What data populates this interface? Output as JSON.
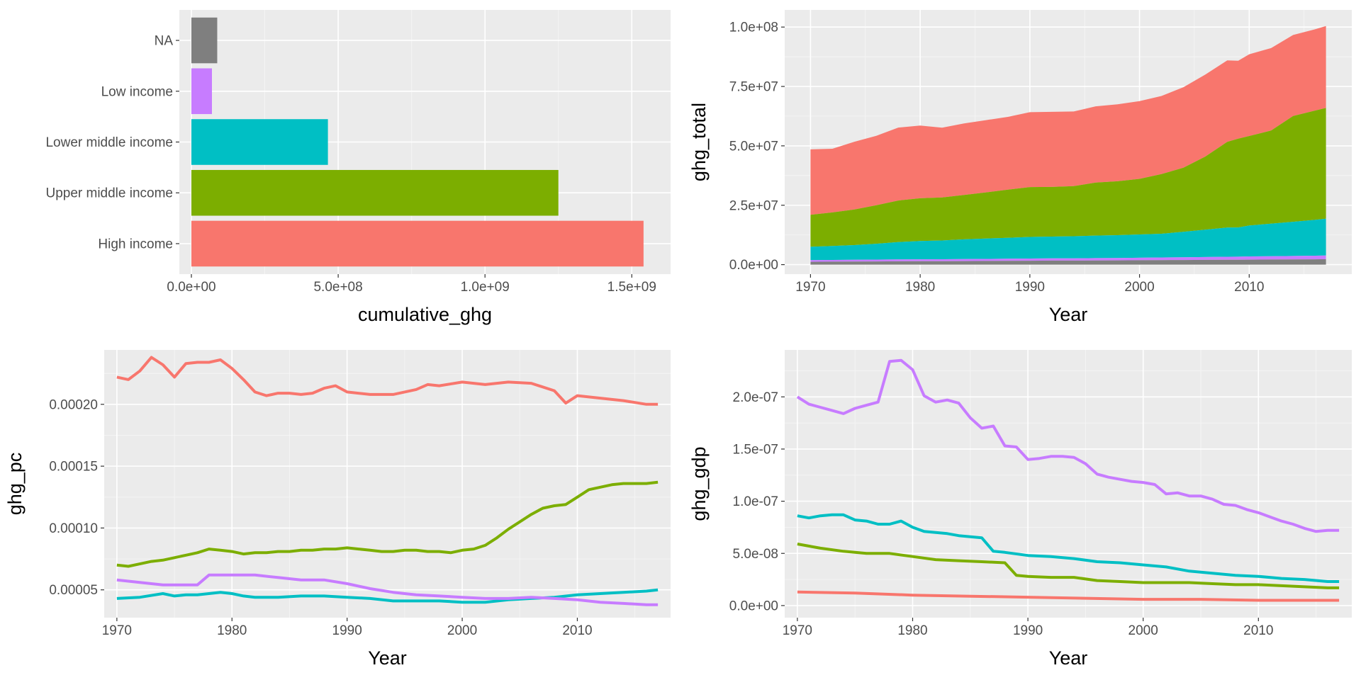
{
  "colors": {
    "High income": "#F8766D",
    "Upper middle income": "#7CAE00",
    "Lower middle income": "#00BFC4",
    "Low income": "#C77CFF",
    "NA": "#7F7F7F"
  },
  "chart_data": [
    {
      "type": "bar",
      "orientation": "horizontal",
      "xlabel": "cumulative_ghg",
      "ylabel": "",
      "xlim": [
        0,
        1550000000
      ],
      "x_ticks": [
        0,
        500000000,
        1000000000,
        1500000000
      ],
      "x_tick_labels": [
        "0.0e+00",
        "5.0e+08",
        "1.0e+09",
        "1.5e+09"
      ],
      "categories": [
        "High income",
        "Upper middle income",
        "Lower middle income",
        "Low income",
        "NA"
      ],
      "values": [
        1540000000,
        1250000000,
        465000000,
        70000000,
        88000000
      ],
      "grid": true
    },
    {
      "type": "area",
      "stacked": true,
      "xlabel": "Year",
      "ylabel": "ghg_total",
      "x": [
        1970,
        1972,
        1974,
        1976,
        1978,
        1980,
        1982,
        1984,
        1986,
        1988,
        1990,
        1992,
        1994,
        1996,
        1998,
        2000,
        2002,
        2004,
        2006,
        2008,
        2009,
        2010,
        2012,
        2014,
        2016,
        2017
      ],
      "x_ticks": [
        1970,
        1980,
        1990,
        2000,
        2010
      ],
      "x_tick_labels": [
        "1970",
        "1980",
        "1990",
        "2000",
        "2010"
      ],
      "ylim": [
        0,
        101000000
      ],
      "y_ticks": [
        0,
        25000000,
        50000000,
        75000000,
        100000000
      ],
      "y_tick_labels": [
        "0.0e+00",
        "2.5e+07",
        "5.0e+07",
        "7.5e+07",
        "1.0e+08"
      ],
      "stack_order_bottom_to_top": [
        "NA",
        "Low income",
        "Lower middle income",
        "Upper middle income",
        "High income"
      ],
      "series": [
        {
          "name": "NA",
          "values": [
            1200000,
            1250000,
            1300000,
            1350000,
            1400000,
            1450000,
            1450000,
            1500000,
            1550000,
            1600000,
            1650000,
            1700000,
            1700000,
            1750000,
            1800000,
            1850000,
            1900000,
            1950000,
            2000000,
            2050000,
            2050000,
            2100000,
            2150000,
            2200000,
            2250000,
            2300000
          ]
        },
        {
          "name": "Low income",
          "values": [
            700000,
            720000,
            740000,
            760000,
            780000,
            800000,
            820000,
            840000,
            860000,
            880000,
            900000,
            920000,
            950000,
            980000,
            1000000,
            1050000,
            1100000,
            1150000,
            1200000,
            1250000,
            1300000,
            1350000,
            1400000,
            1450000,
            1500000,
            1550000
          ]
        },
        {
          "name": "Lower middle income",
          "values": [
            5600000,
            5900000,
            6200000,
            6700000,
            7300000,
            7700000,
            7900000,
            8300000,
            8600000,
            8800000,
            9100000,
            9200000,
            9300000,
            9500000,
            9600000,
            9800000,
            10000000,
            10700000,
            11500000,
            12300000,
            12300000,
            13000000,
            13700000,
            14400000,
            15100000,
            15500000
          ]
        },
        {
          "name": "Upper middle income",
          "values": [
            13500000,
            14100000,
            15000000,
            16200000,
            17500000,
            18000000,
            18100000,
            18700000,
            19400000,
            20300000,
            21000000,
            20900000,
            21100000,
            22300000,
            22700000,
            23400000,
            25100000,
            27000000,
            30800000,
            36100000,
            37400000,
            37700000,
            39200000,
            44500000,
            46000000,
            46600000
          ]
        },
        {
          "name": "High income",
          "values": [
            27500000,
            26800000,
            28500000,
            29200000,
            30700000,
            30600000,
            29400000,
            30100000,
            30400000,
            30600000,
            31500000,
            31600000,
            31400000,
            32100000,
            32400000,
            32700000,
            32900000,
            33900000,
            34500000,
            34300000,
            32800000,
            34400000,
            34700000,
            34100000,
            34200000,
            34500000
          ]
        }
      ],
      "grid": true
    },
    {
      "type": "line",
      "xlabel": "Year",
      "ylabel": "ghg_pc",
      "xlim": [
        1968.9,
        2018.1
      ],
      "x_ticks": [
        1970,
        1980,
        1990,
        2000,
        2010
      ],
      "x_tick_labels": [
        "1970",
        "1980",
        "1990",
        "2000",
        "2010"
      ],
      "ylim": [
        2.75e-05,
        0.000244
      ],
      "y_ticks": [
        5e-05,
        0.0001,
        0.00015,
        0.0002
      ],
      "y_tick_labels": [
        "0.00005",
        "0.00010",
        "0.00015",
        "0.00020"
      ],
      "series": [
        {
          "name": "High income",
          "x": [
            1970,
            1971,
            1972,
            1973,
            1974,
            1975,
            1976,
            1977,
            1978,
            1979,
            1980,
            1981,
            1982,
            1983,
            1984,
            1985,
            1986,
            1987,
            1988,
            1989,
            1990,
            1992,
            1994,
            1996,
            1997,
            1998,
            2000,
            2002,
            2004,
            2006,
            2008,
            2009,
            2010,
            2012,
            2014,
            2016,
            2017
          ],
          "values": [
            0.000222,
            0.00022,
            0.000227,
            0.000238,
            0.000232,
            0.000222,
            0.000233,
            0.000234,
            0.000234,
            0.000236,
            0.000229,
            0.00022,
            0.00021,
            0.000207,
            0.000209,
            0.000209,
            0.000208,
            0.000209,
            0.000213,
            0.000215,
            0.00021,
            0.000208,
            0.000208,
            0.000212,
            0.000216,
            0.000215,
            0.000218,
            0.000216,
            0.000218,
            0.000217,
            0.000211,
            0.000201,
            0.000207,
            0.000205,
            0.000203,
            0.0002,
            0.0002
          ]
        },
        {
          "name": "Upper middle income",
          "x": [
            1970,
            1971,
            1972,
            1973,
            1974,
            1975,
            1976,
            1977,
            1978,
            1979,
            1980,
            1981,
            1982,
            1983,
            1984,
            1985,
            1986,
            1987,
            1988,
            1989,
            1990,
            1991,
            1992,
            1993,
            1994,
            1995,
            1996,
            1997,
            1998,
            1999,
            2000,
            2001,
            2002,
            2003,
            2004,
            2005,
            2006,
            2007,
            2008,
            2009,
            2010,
            2011,
            2012,
            2013,
            2014,
            2015,
            2016,
            2017
          ],
          "values": [
            7e-05,
            6.9e-05,
            7.1e-05,
            7.3e-05,
            7.4e-05,
            7.6e-05,
            7.8e-05,
            8e-05,
            8.3e-05,
            8.2e-05,
            8.1e-05,
            7.9e-05,
            8e-05,
            8e-05,
            8.1e-05,
            8.1e-05,
            8.2e-05,
            8.2e-05,
            8.3e-05,
            8.3e-05,
            8.4e-05,
            8.3e-05,
            8.2e-05,
            8.1e-05,
            8.1e-05,
            8.2e-05,
            8.2e-05,
            8.1e-05,
            8.1e-05,
            8e-05,
            8.2e-05,
            8.3e-05,
            8.6e-05,
            9.2e-05,
            9.9e-05,
            0.000105,
            0.000111,
            0.000116,
            0.000118,
            0.000119,
            0.000125,
            0.000131,
            0.000133,
            0.000135,
            0.000136,
            0.000136,
            0.000136,
            0.000137
          ]
        },
        {
          "name": "Lower middle income",
          "x": [
            1970,
            1972,
            1974,
            1975,
            1976,
            1977,
            1978,
            1979,
            1980,
            1981,
            1982,
            1984,
            1986,
            1988,
            1990,
            1992,
            1994,
            1996,
            1998,
            2000,
            2002,
            2004,
            2006,
            2008,
            2010,
            2012,
            2014,
            2016,
            2017
          ],
          "values": [
            4.3e-05,
            4.4e-05,
            4.7e-05,
            4.5e-05,
            4.6e-05,
            4.6e-05,
            4.7e-05,
            4.8e-05,
            4.7e-05,
            4.5e-05,
            4.4e-05,
            4.4e-05,
            4.5e-05,
            4.5e-05,
            4.4e-05,
            4.3e-05,
            4.1e-05,
            4.1e-05,
            4.1e-05,
            4e-05,
            4e-05,
            4.2e-05,
            4.3e-05,
            4.4e-05,
            4.6e-05,
            4.7e-05,
            4.8e-05,
            4.9e-05,
            5e-05
          ]
        },
        {
          "name": "Low income",
          "x": [
            1970,
            1972,
            1974,
            1976,
            1977,
            1978,
            1980,
            1982,
            1984,
            1986,
            1988,
            1990,
            1992,
            1994,
            1996,
            1998,
            2000,
            2002,
            2004,
            2006,
            2008,
            2010,
            2012,
            2014,
            2016,
            2017
          ],
          "values": [
            5.8e-05,
            5.6e-05,
            5.4e-05,
            5.4e-05,
            5.4e-05,
            6.2e-05,
            6.2e-05,
            6.2e-05,
            6e-05,
            5.8e-05,
            5.8e-05,
            5.5e-05,
            5.1e-05,
            4.8e-05,
            4.6e-05,
            4.5e-05,
            4.4e-05,
            4.3e-05,
            4.3e-05,
            4.4e-05,
            4.3e-05,
            4.2e-05,
            4e-05,
            3.9e-05,
            3.8e-05,
            3.8e-05
          ]
        }
      ],
      "grid": true
    },
    {
      "type": "line",
      "xlabel": "Year",
      "ylabel": "ghg_gdp",
      "xlim": [
        1968.9,
        2018.1
      ],
      "x_ticks": [
        1970,
        1980,
        1990,
        2000,
        2010
      ],
      "x_tick_labels": [
        "1970",
        "1980",
        "1990",
        "2000",
        "2010"
      ],
      "ylim": [
        -1.16e-08,
        2.45e-07
      ],
      "y_ticks": [
        0,
        5e-08,
        1e-07,
        1.5e-07,
        2e-07
      ],
      "y_tick_labels": [
        "0.0e+00",
        "5.0e-08",
        "1.0e-07",
        "1.5e-07",
        "2.0e-07"
      ],
      "series": [
        {
          "name": "Low income",
          "x": [
            1970,
            1971,
            1972,
            1973,
            1974,
            1975,
            1976,
            1977,
            1978,
            1979,
            1980,
            1981,
            1982,
            1983,
            1984,
            1985,
            1986,
            1987,
            1988,
            1989,
            1990,
            1991,
            1992,
            1993,
            1994,
            1995,
            1996,
            1997,
            1998,
            1999,
            2000,
            2001,
            2002,
            2003,
            2004,
            2005,
            2006,
            2007,
            2008,
            2009,
            2010,
            2011,
            2012,
            2013,
            2014,
            2015,
            2016,
            2017
          ],
          "values": [
            2e-07,
            1.93e-07,
            1.9e-07,
            1.87e-07,
            1.84e-07,
            1.89e-07,
            1.92e-07,
            1.95e-07,
            2.34e-07,
            2.35e-07,
            2.26e-07,
            2.01e-07,
            1.95e-07,
            1.97e-07,
            1.94e-07,
            1.8e-07,
            1.7e-07,
            1.72e-07,
            1.53e-07,
            1.52e-07,
            1.4e-07,
            1.41e-07,
            1.43e-07,
            1.43e-07,
            1.42e-07,
            1.36e-07,
            1.26e-07,
            1.23e-07,
            1.21e-07,
            1.19e-07,
            1.18e-07,
            1.16e-07,
            1.07e-07,
            1.08e-07,
            1.05e-07,
            1.05e-07,
            1.02e-07,
            9.7e-08,
            9.6e-08,
            9.2e-08,
            8.9e-08,
            8.5e-08,
            8.1e-08,
            7.8e-08,
            7.4e-08,
            7.1e-08,
            7.2e-08,
            7.2e-08
          ]
        },
        {
          "name": "Lower middle income",
          "x": [
            1970,
            1971,
            1972,
            1973,
            1974,
            1975,
            1976,
            1977,
            1978,
            1979,
            1980,
            1981,
            1982,
            1983,
            1984,
            1985,
            1986,
            1987,
            1988,
            1990,
            1992,
            1994,
            1996,
            1998,
            2000,
            2002,
            2004,
            2006,
            2008,
            2010,
            2012,
            2014,
            2016,
            2017
          ],
          "values": [
            8.6e-08,
            8.4e-08,
            8.6e-08,
            8.7e-08,
            8.7e-08,
            8.2e-08,
            8.1e-08,
            7.8e-08,
            7.8e-08,
            8.1e-08,
            7.5e-08,
            7.1e-08,
            7e-08,
            6.9e-08,
            6.7e-08,
            6.6e-08,
            6.5e-08,
            5.2e-08,
            5.1e-08,
            4.8e-08,
            4.7e-08,
            4.5e-08,
            4.2e-08,
            4.1e-08,
            3.9e-08,
            3.7e-08,
            3.3e-08,
            3.1e-08,
            2.9e-08,
            2.8e-08,
            2.6e-08,
            2.5e-08,
            2.3e-08,
            2.3e-08
          ]
        },
        {
          "name": "Upper middle income",
          "x": [
            1970,
            1972,
            1974,
            1976,
            1978,
            1980,
            1982,
            1984,
            1986,
            1988,
            1989,
            1990,
            1992,
            1994,
            1996,
            1998,
            2000,
            2002,
            2004,
            2006,
            2008,
            2010,
            2012,
            2014,
            2016,
            2017
          ],
          "values": [
            5.9e-08,
            5.5e-08,
            5.2e-08,
            5e-08,
            5e-08,
            4.7e-08,
            4.4e-08,
            4.3e-08,
            4.2e-08,
            4.1e-08,
            2.9e-08,
            2.8e-08,
            2.7e-08,
            2.7e-08,
            2.4e-08,
            2.3e-08,
            2.2e-08,
            2.2e-08,
            2.2e-08,
            2.1e-08,
            2e-08,
            2e-08,
            1.9e-08,
            1.8e-08,
            1.7e-08,
            1.7e-08
          ]
        },
        {
          "name": "High income",
          "x": [
            1970,
            1975,
            1980,
            1985,
            1990,
            1995,
            2000,
            2005,
            2010,
            2015,
            2017
          ],
          "values": [
            1.3e-08,
            1.2e-08,
            1e-08,
            9e-09,
            8e-09,
            7e-09,
            6e-09,
            6e-09,
            5e-09,
            5e-09,
            5e-09
          ]
        }
      ],
      "grid": true
    }
  ]
}
